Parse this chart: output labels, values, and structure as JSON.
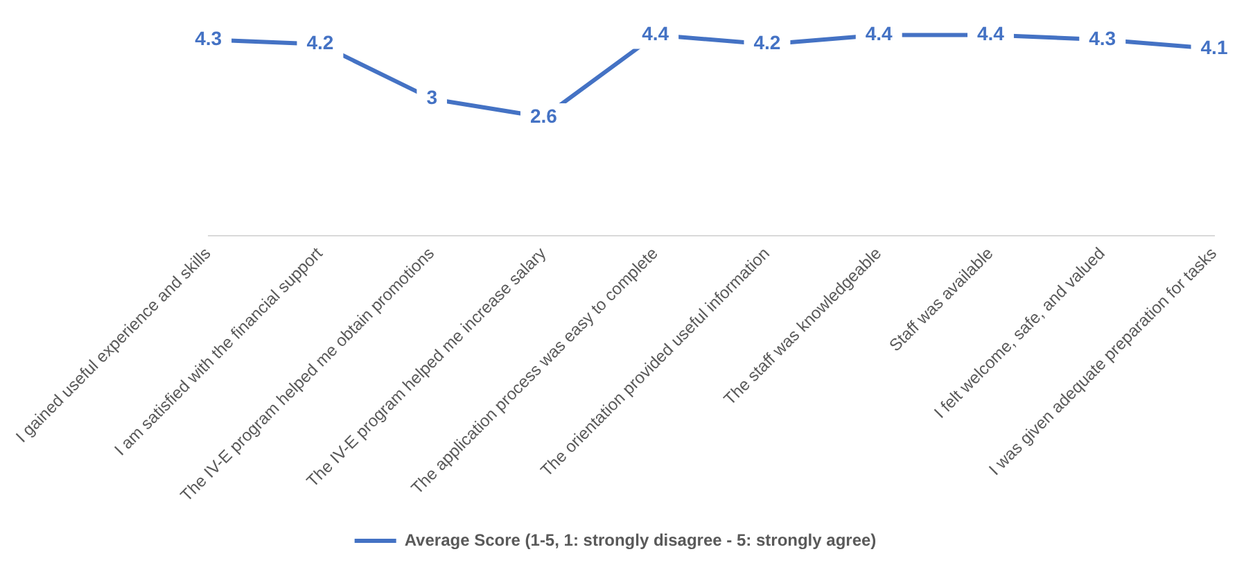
{
  "chart_data": {
    "type": "line",
    "categories": [
      "I gained useful experience and skills",
      "I am satisfied with the financial support",
      "The IV-E program helped me obtain promotions",
      "The IV-E program helped me increase salary",
      "The application process was easy to complete",
      "The orientation provided useful information",
      "The staff was knowledgeable",
      "Staff was available",
      "I felt welcome, safe, and valued",
      "I was given adequate preparation for tasks"
    ],
    "series": [
      {
        "name": "Average Score (1-5, 1: strongly disagree - 5: strongly agree)",
        "color": "#4472c4",
        "values": [
          4.3,
          4.2,
          3,
          2.6,
          4.4,
          4.2,
          4.4,
          4.4,
          4.3,
          4.1
        ]
      }
    ],
    "tick_labels": "x",
    "grid": false,
    "legend": "bottom",
    "line_style": "solid",
    "data_labels": true
  }
}
